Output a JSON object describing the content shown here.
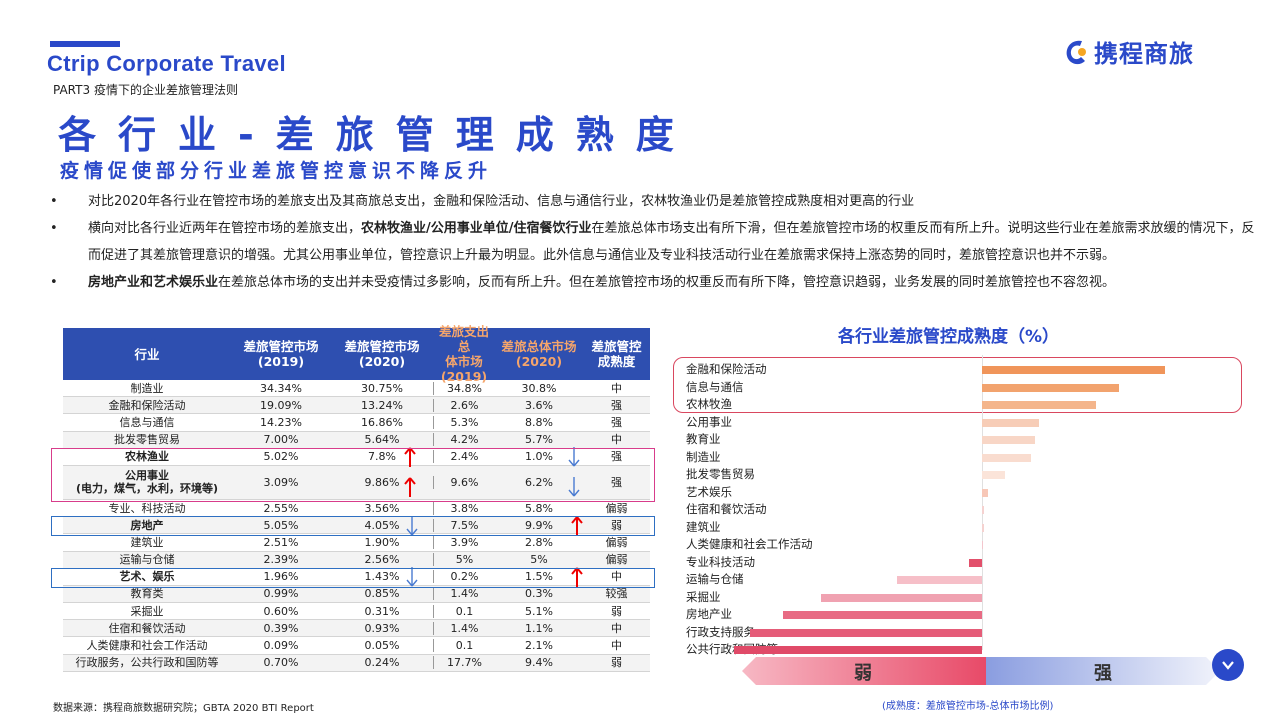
{
  "header": {
    "brand": "Ctrip Corporate Travel",
    "part": "PART3",
    "part_title": "疫情下的企业差旅管理法则",
    "title": "各行业-差旅管理成熟度",
    "subtitle": "疫情促使部分行业差旅管控意识不降反升",
    "logo_text": "携程商旅"
  },
  "bullets": {
    "b1": "对比2020年各行业在管控市场的差旅支出及其商旅总支出，金融和保险活动、信息与通信行业，农林牧渔业仍是差旅管控成熟度相对更高的行业",
    "b2_a": "横向对比各行业近两年在管控市场的差旅支出，",
    "b2_bold": "农林牧渔业/公用事业单位/住宿餐饮行业",
    "b2_b": "在差旅总体市场支出有所下滑，但在差旅管控市场的权重反而有所上升。说明这些行业在差旅需求放缓的情况下，反而促进了其差旅管理意识的增强。尤其公用事业单位，管控意识上升最为明显。此外信息与通信业及专业科技活动行业在差旅需求保持上涨态势的同时，差旅管控意识也并不示弱。",
    "b3_bold": "房地产业和艺术娱乐业",
    "b3_a": "在差旅总体市场的支出并未受疫情过多影响，反而有所上升。但在差旅管控市场的权重反而有所下降，管控意识趋弱，业务发展的同时差旅管控也不容忽视。"
  },
  "table": {
    "headers": [
      "行业",
      "差旅管控市场\n(2019)",
      "差旅管控市场\n(2020)",
      "差旅支出总\n体市场\n(2019)",
      "差旅总体市场\n(2020)",
      "差旅管控\n成熟度"
    ],
    "rows": [
      {
        "name": "制造业",
        "v": [
          "34.34%",
          "30.75%",
          "34.8%",
          "30.8%",
          "中"
        ]
      },
      {
        "name": "金融和保险活动",
        "v": [
          "19.09%",
          "13.24%",
          "2.6%",
          "3.6%",
          "强"
        ]
      },
      {
        "name": "信息与通信",
        "v": [
          "14.23%",
          "16.86%",
          "5.3%",
          "8.8%",
          "强"
        ]
      },
      {
        "name": "批发零售贸易",
        "v": [
          "7.00%",
          "5.64%",
          "4.2%",
          "5.7%",
          "中"
        ]
      },
      {
        "name": "农林渔业",
        "v": [
          "5.02%",
          "7.8%",
          "2.4%",
          "1.0%",
          "强"
        ]
      },
      {
        "name": "公用事业\n(电力，煤气，水利，环境等)",
        "v": [
          "3.09%",
          "9.86%",
          "9.6%",
          "6.2%",
          "强"
        ]
      },
      {
        "name": "专业、科技活动",
        "v": [
          "2.55%",
          "3.56%",
          "3.8%",
          "5.8%",
          "偏弱"
        ]
      },
      {
        "name": "房地产",
        "v": [
          "5.05%",
          "4.05%",
          "7.5%",
          "9.9%",
          "弱"
        ]
      },
      {
        "name": "建筑业",
        "v": [
          "2.51%",
          "1.90%",
          "3.9%",
          "2.8%",
          "偏弱"
        ]
      },
      {
        "name": "运输与仓储",
        "v": [
          "2.39%",
          "2.56%",
          "5%",
          "5%",
          "偏弱"
        ]
      },
      {
        "name": "艺术、娱乐",
        "v": [
          "1.96%",
          "1.43%",
          "0.2%",
          "1.5%",
          "中"
        ]
      },
      {
        "name": "教育类",
        "v": [
          "0.99%",
          "0.85%",
          "1.4%",
          "0.3%",
          "较强"
        ]
      },
      {
        "name": "采掘业",
        "v": [
          "0.60%",
          "0.31%",
          "0.1",
          "5.1%",
          "弱"
        ]
      },
      {
        "name": "住宿和餐饮活动",
        "v": [
          "0.39%",
          "0.93%",
          "1.4%",
          "1.1%",
          "中"
        ]
      },
      {
        "name": "人类健康和社会工作活动",
        "v": [
          "0.09%",
          "0.05%",
          "0.1",
          "2.1%",
          "中"
        ]
      },
      {
        "name": "行政服务，公共行政和国防等",
        "v": [
          "0.70%",
          "0.24%",
          "17.7%",
          "9.4%",
          "弱"
        ]
      }
    ]
  },
  "chart_data": {
    "type": "bar",
    "title": "各行业差旅管控成熟度（%）",
    "categories": [
      "金融和保险活动",
      "信息与通信",
      "农林牧渔",
      "公用事业",
      "教育业",
      "制造业",
      "批发零售贸易",
      "艺术娱乐",
      "住宿和餐饮活动",
      "建筑业",
      "人类健康和社会工作活动",
      "专业科技活动",
      "运输与仓储",
      "采掘业",
      "房地产业",
      "行政支持服务、",
      "公共行政和国防等"
    ],
    "values": [
      3.66,
      2.74,
      2.27,
      1.13,
      1.05,
      0.97,
      0.45,
      0.11,
      0.04,
      0.03,
      0.02,
      -0.26,
      -1.71,
      -3.22,
      -3.99,
      -4.64,
      -4.96
    ],
    "colors": [
      "#f0955a",
      "#f2a36e",
      "#f4b58b",
      "#f7cdb7",
      "#f8d6c6",
      "#f9dccf",
      "#fbe4d9",
      "#f7c7b7",
      "#f5d2d0",
      "#f5d2d0",
      "#f3c6cd",
      "#e2506b",
      "#f6bfc8",
      "#f0a2b1",
      "#e86b84",
      "#e55c78",
      "#e04a68"
    ]
  },
  "scale": {
    "weak": "弱",
    "strong": "强"
  },
  "footer": {
    "source": "数据来源：携程商旅数据研究院；GBTA 2020 BTI Report",
    "note": "(成熟度：差旅管控市场-总体市场比例)"
  }
}
